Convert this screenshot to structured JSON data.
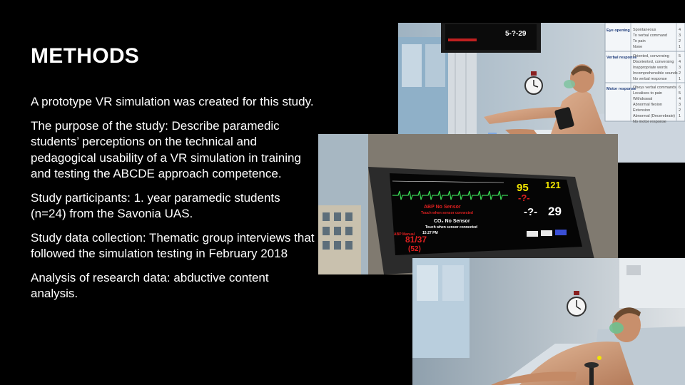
{
  "slide": {
    "title": "METHODS",
    "paragraphs": [
      "A prototype VR simulation was created for this study.",
      "The purpose of the study: Describe paramedic students’ perceptions on the technical and pedagogical usability of a VR simulation in training and testing the ABCDE approach competence.",
      "Study participants: 1. year paramedic students (n=24) from the Savonia UAS.",
      "Study data collection: Thematic group interviews that followed the simulation testing in February 2018",
      "Analysis of research data: abductive content analysis."
    ]
  },
  "monitor": {
    "hr": "95",
    "spo2": "121",
    "dash_a": "-?-",
    "dash_b": "-?-",
    "rr": "29",
    "abp_no_sensor": "ABP No Sensor",
    "abp_touch": "Touch when sensor connected",
    "co2_no_sensor": "CO₂ No Sensor",
    "co2_touch": "Touch when sensor connected",
    "abp_manual_label": "ABP Manual",
    "abp_time": "15:27 PM",
    "bp": "81/37",
    "map": "(52)",
    "top_value": "5-?-29"
  },
  "gcs_card": {
    "rows": [
      {
        "head": "Eye opening",
        "items": [
          "Spontaneous",
          "To verbal command",
          "To pain",
          "None"
        ],
        "scores": [
          "4",
          "3",
          "2",
          "1"
        ]
      },
      {
        "head": "Verbal response",
        "items": [
          "Oriented, conversing",
          "Disoriented, conversing",
          "Inappropriate words",
          "Incomprehensible sounds",
          "No verbal response"
        ],
        "scores": [
          "5",
          "4",
          "3",
          "2",
          "1"
        ]
      },
      {
        "head": "Motor response",
        "items": [
          "Obeys verbal commands",
          "Localises to pain",
          "Withdrawal",
          "Abnormal flexion",
          "Extension",
          "Abnormal (Decerebrate)",
          "No motor response"
        ],
        "scores": [
          "6",
          "5",
          "4",
          "3",
          "2",
          "1",
          ""
        ]
      }
    ]
  },
  "colors": {
    "background": "#000000",
    "text": "#ffffff",
    "monitor_yellow": "#f2e600",
    "monitor_red": "#e02020",
    "monitor_green": "#39d353"
  }
}
